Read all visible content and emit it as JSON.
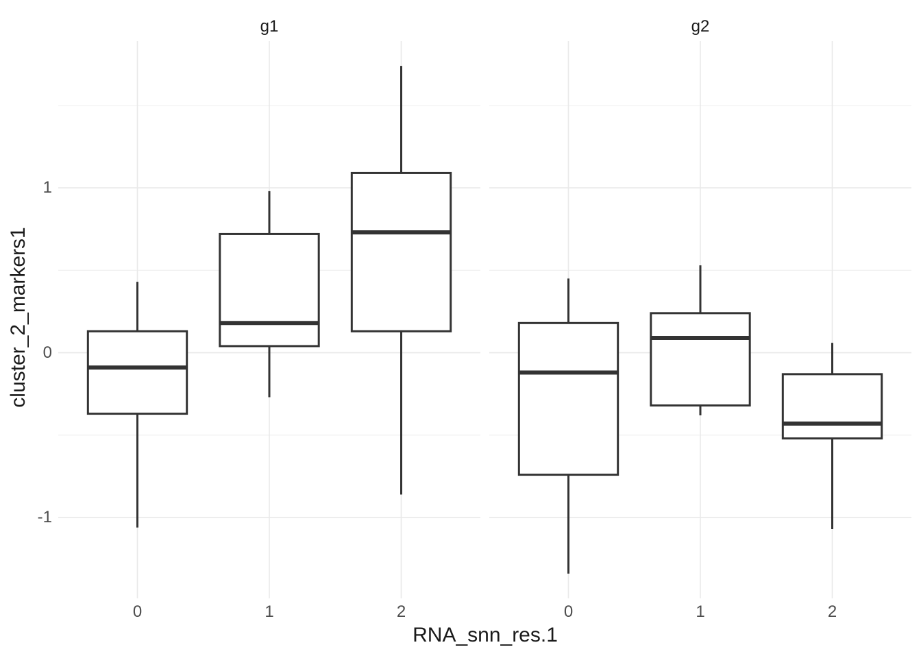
{
  "chart_data": {
    "type": "boxplot",
    "title": "",
    "xlabel": "RNA_snn_res.1",
    "ylabel": "cluster_2_markers1",
    "ylim": [
      -1.49,
      1.89
    ],
    "grid": true,
    "legend": "none",
    "y_ticks": [
      {
        "value": -1,
        "label": "-1"
      },
      {
        "value": 0,
        "label": "0"
      },
      {
        "value": 1,
        "label": "1"
      }
    ],
    "y_minor": [
      -0.5,
      0.5,
      1.5
    ],
    "facets": [
      {
        "label": "g1",
        "categories": [
          "0",
          "1",
          "2"
        ],
        "boxes": [
          {
            "category": "0",
            "whisker_low": -1.06,
            "q1": -0.37,
            "median": -0.09,
            "q3": 0.13,
            "whisker_high": 0.43
          },
          {
            "category": "1",
            "whisker_low": -0.27,
            "q1": 0.04,
            "median": 0.18,
            "q3": 0.72,
            "whisker_high": 0.98
          },
          {
            "category": "2",
            "whisker_low": -0.86,
            "q1": 0.13,
            "median": 0.73,
            "q3": 1.09,
            "whisker_high": 1.74
          }
        ]
      },
      {
        "label": "g2",
        "categories": [
          "0",
          "1",
          "2"
        ],
        "boxes": [
          {
            "category": "0",
            "whisker_low": -1.34,
            "q1": -0.74,
            "median": -0.12,
            "q3": 0.18,
            "whisker_high": 0.45
          },
          {
            "category": "1",
            "whisker_low": -0.38,
            "q1": -0.32,
            "median": 0.09,
            "q3": 0.24,
            "whisker_high": 0.53
          },
          {
            "category": "2",
            "whisker_low": -1.07,
            "q1": -0.52,
            "median": -0.43,
            "q3": -0.13,
            "whisker_high": 0.06
          }
        ]
      }
    ],
    "colors": {
      "box_stroke": "#333333",
      "box_fill": "#ffffff",
      "grid_major": "#e9e9e9",
      "grid_minor": "#f0f0f0",
      "axis_text": "#4d4d4d",
      "title_text": "#1a1a1a",
      "background": "#ffffff"
    }
  }
}
